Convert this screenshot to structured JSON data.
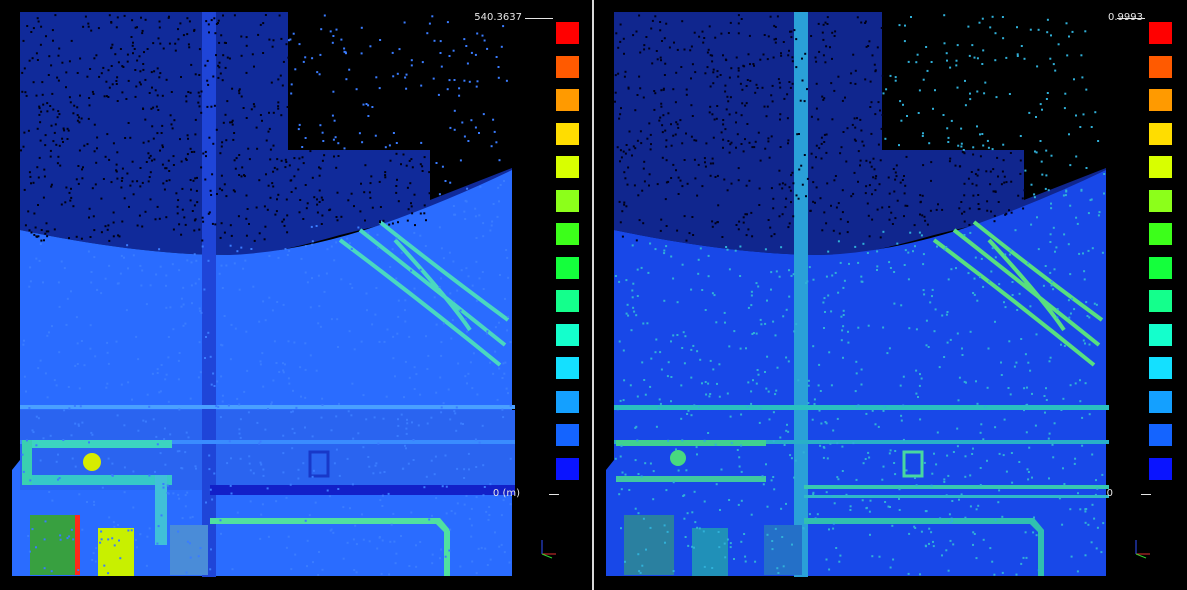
{
  "views": [
    {
      "id": "left",
      "scalar_field": "distance",
      "scale_max_label": "540.3637",
      "scale_min_label": "0 (m)",
      "base_color": "#1f5fff"
    },
    {
      "id": "right",
      "scalar_field": "normalized",
      "scale_max_label": "0.9993",
      "scale_min_label": "0",
      "base_color": "#1650f0"
    }
  ],
  "color_scale": [
    "#ff0000",
    "#ff5a00",
    "#ff9a00",
    "#ffdd00",
    "#d8ff00",
    "#8cff1a",
    "#3cff1a",
    "#14ff3c",
    "#14ff8c",
    "#14ffcc",
    "#14e0ff",
    "#14a0ff",
    "#1464ff",
    "#0a14ff"
  ],
  "icons": {
    "axis_gizmo": "xyz-axis-icon"
  }
}
